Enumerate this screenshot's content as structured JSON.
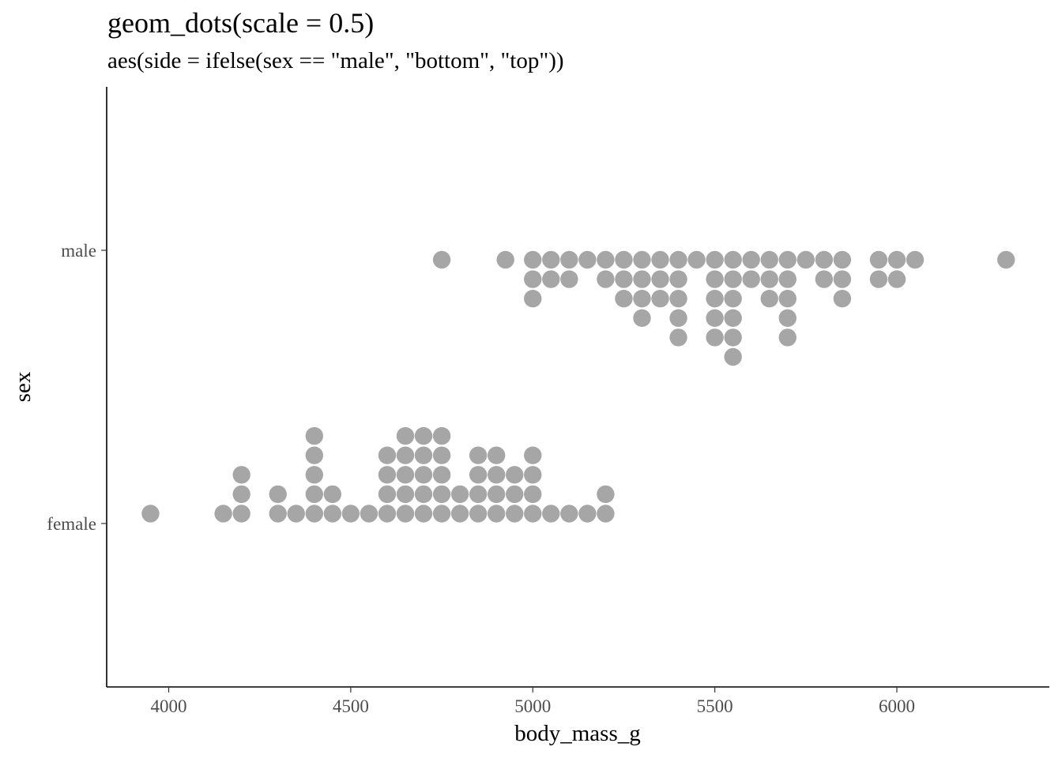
{
  "chart_data": {
    "type": "dotplot",
    "title": "geom_dots(scale = 0.5)",
    "subtitle": "aes(side = ifelse(sex == \"male\", \"bottom\", \"top\"))",
    "xlabel": "body_mass_g",
    "ylabel": "sex",
    "xlim": [
      3830,
      6410
    ],
    "x_ticks": [
      4000,
      4500,
      5000,
      5500,
      6000
    ],
    "categories": [
      "female",
      "male"
    ],
    "grid": false,
    "dot_color": "#a6a6a6",
    "series": [
      {
        "name": "female",
        "side": "top",
        "bins": [
          {
            "x": 3950,
            "count": 1
          },
          {
            "x": 4150,
            "count": 1
          },
          {
            "x": 4200,
            "count": 3
          },
          {
            "x": 4300,
            "count": 2
          },
          {
            "x": 4350,
            "count": 1
          },
          {
            "x": 4400,
            "count": 5
          },
          {
            "x": 4450,
            "count": 2
          },
          {
            "x": 4500,
            "count": 1
          },
          {
            "x": 4550,
            "count": 1
          },
          {
            "x": 4600,
            "count": 4
          },
          {
            "x": 4650,
            "count": 5
          },
          {
            "x": 4700,
            "count": 5
          },
          {
            "x": 4750,
            "count": 5
          },
          {
            "x": 4800,
            "count": 2
          },
          {
            "x": 4850,
            "count": 4
          },
          {
            "x": 4900,
            "count": 4
          },
          {
            "x": 4950,
            "count": 3
          },
          {
            "x": 5000,
            "count": 4
          },
          {
            "x": 5050,
            "count": 1
          },
          {
            "x": 5100,
            "count": 1
          },
          {
            "x": 5150,
            "count": 1
          },
          {
            "x": 5200,
            "count": 2
          }
        ]
      },
      {
        "name": "male",
        "side": "bottom",
        "bins": [
          {
            "x": 4750,
            "count": 1
          },
          {
            "x": 4925,
            "count": 1
          },
          {
            "x": 5000,
            "count": 3
          },
          {
            "x": 5050,
            "count": 2
          },
          {
            "x": 5100,
            "count": 2
          },
          {
            "x": 5150,
            "count": 1
          },
          {
            "x": 5200,
            "count": 2
          },
          {
            "x": 5250,
            "count": 3
          },
          {
            "x": 5300,
            "count": 4
          },
          {
            "x": 5350,
            "count": 3
          },
          {
            "x": 5400,
            "count": 5
          },
          {
            "x": 5450,
            "count": 1
          },
          {
            "x": 5500,
            "count": 5
          },
          {
            "x": 5550,
            "count": 6
          },
          {
            "x": 5600,
            "count": 2
          },
          {
            "x": 5650,
            "count": 3
          },
          {
            "x": 5700,
            "count": 5
          },
          {
            "x": 5750,
            "count": 1
          },
          {
            "x": 5800,
            "count": 2
          },
          {
            "x": 5850,
            "count": 3
          },
          {
            "x": 5950,
            "count": 2
          },
          {
            "x": 6000,
            "count": 2
          },
          {
            "x": 6050,
            "count": 1
          },
          {
            "x": 6300,
            "count": 1
          }
        ]
      }
    ]
  }
}
